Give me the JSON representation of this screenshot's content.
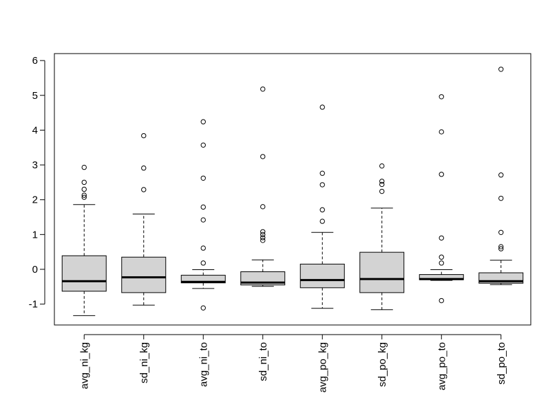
{
  "chart_data": {
    "type": "box",
    "title": "",
    "xlabel": "",
    "ylabel": "",
    "ylim": [
      -1.6,
      6.2
    ],
    "yticks": [
      -1,
      0,
      1,
      2,
      3,
      4,
      5,
      6
    ],
    "ytick_labels": [
      "-1",
      "0",
      "1",
      "2",
      "3",
      "4",
      "5",
      "6"
    ],
    "box_color": "#d3d3d3",
    "grid": false,
    "categories": [
      "avg_ni_kg",
      "sd_ni_kg",
      "avg_ni_to",
      "sd_ni_to",
      "avg_po_kg",
      "sd_po_kg",
      "avg_po_to",
      "sd_po_to"
    ],
    "boxes": [
      {
        "min": -1.33,
        "q1": -0.63,
        "median": -0.34,
        "q3": 0.39,
        "max": 1.86,
        "outliers": [
          2.07,
          2.13,
          2.3,
          2.5,
          2.93
        ]
      },
      {
        "min": -1.03,
        "q1": -0.67,
        "median": -0.23,
        "q3": 0.35,
        "max": 1.59,
        "outliers": [
          2.29,
          2.91,
          3.84
        ]
      },
      {
        "min": -0.55,
        "q1": -0.39,
        "median": -0.36,
        "q3": -0.17,
        "max": -0.01,
        "outliers": [
          0.18,
          0.61,
          1.42,
          1.79,
          2.62,
          3.57,
          4.24,
          -1.11
        ]
      },
      {
        "min": -0.49,
        "q1": -0.45,
        "median": -0.38,
        "q3": -0.07,
        "max": 0.27,
        "outliers": [
          0.83,
          0.91,
          1.0,
          1.08,
          1.8,
          3.24,
          5.18
        ]
      },
      {
        "min": -1.12,
        "q1": -0.53,
        "median": -0.31,
        "q3": 0.15,
        "max": 1.06,
        "outliers": [
          1.38,
          1.71,
          2.43,
          2.76,
          4.66
        ]
      },
      {
        "min": -1.16,
        "q1": -0.67,
        "median": -0.28,
        "q3": 0.49,
        "max": 1.76,
        "outliers": [
          2.24,
          2.44,
          2.53,
          2.97
        ]
      },
      {
        "min": -0.32,
        "q1": -0.3,
        "median": -0.28,
        "q3": -0.15,
        "max": -0.01,
        "outliers": [
          0.18,
          0.35,
          0.9,
          2.73,
          3.95,
          4.96,
          -0.9
        ]
      },
      {
        "min": -0.44,
        "q1": -0.4,
        "median": -0.34,
        "q3": -0.1,
        "max": 0.26,
        "outliers": [
          0.59,
          0.65,
          1.06,
          2.04,
          2.71,
          5.75
        ]
      }
    ]
  }
}
